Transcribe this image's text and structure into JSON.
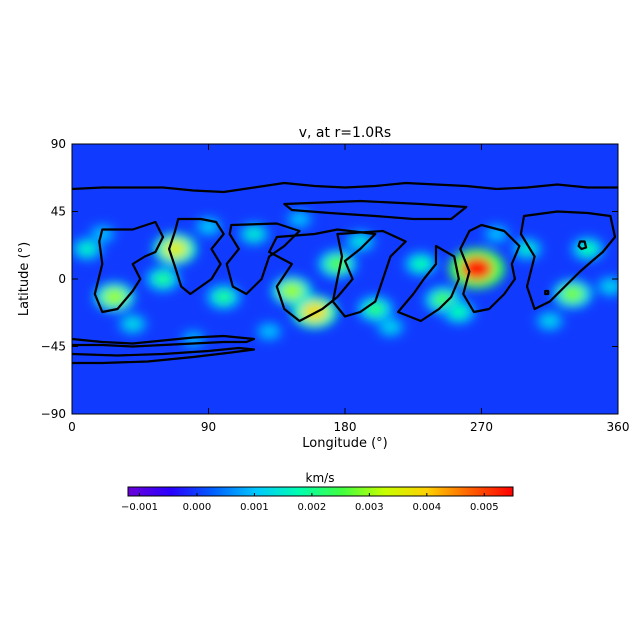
{
  "chart_data": {
    "type": "heatmap",
    "title": "v, at r=1.0Rs",
    "xlabel": "Longitude (°)",
    "ylabel": "Latitude (°)",
    "xlim": [
      0,
      360
    ],
    "ylim": [
      -90,
      90
    ],
    "xticks": [
      0,
      90,
      180,
      270,
      360
    ],
    "yticks": [
      90,
      45,
      0,
      -45,
      -90
    ],
    "xtick_labels": [
      "0",
      "90",
      "180",
      "270",
      "360"
    ],
    "ytick_labels": [
      "90",
      "45",
      "0",
      "−45",
      "−90"
    ],
    "grid": false,
    "background_value": 0.0,
    "colorbar": {
      "label": "km/s",
      "placement": "bottom",
      "range": [
        -0.0012,
        0.0055
      ],
      "ticks": [
        -0.001,
        0.0,
        0.001,
        0.002,
        0.003,
        0.004,
        0.005
      ],
      "tick_labels": [
        "−0.001",
        "0.000",
        "0.001",
        "0.002",
        "0.003",
        "0.004",
        "0.005"
      ],
      "colors": [
        "#6a00d8",
        "#2a00ff",
        "#0060ff",
        "#00c8ff",
        "#00ffb0",
        "#40ff40",
        "#c8ff00",
        "#ffd000",
        "#ff6000",
        "#ff0000"
      ]
    },
    "hotspots": [
      {
        "lon": 267,
        "lat": 7,
        "value": 0.0053
      },
      {
        "lon": 160,
        "lat": -22,
        "value": 0.0038
      },
      {
        "lon": 68,
        "lat": 20,
        "value": 0.0035
      },
      {
        "lon": 145,
        "lat": -8,
        "value": 0.003
      },
      {
        "lon": 28,
        "lat": -12,
        "value": 0.003
      },
      {
        "lon": 330,
        "lat": -10,
        "value": 0.0028
      },
      {
        "lon": 175,
        "lat": 10,
        "value": 0.0026
      },
      {
        "lon": 245,
        "lat": -14,
        "value": 0.0025
      },
      {
        "lon": 200,
        "lat": -20,
        "value": 0.0022
      },
      {
        "lon": 100,
        "lat": -12,
        "value": 0.002
      },
      {
        "lon": 60,
        "lat": 0,
        "value": 0.002
      },
      {
        "lon": 230,
        "lat": 10,
        "value": 0.0018
      },
      {
        "lon": 255,
        "lat": -22,
        "value": 0.0018
      },
      {
        "lon": 340,
        "lat": 20,
        "value": 0.0018
      },
      {
        "lon": 10,
        "lat": 20,
        "value": 0.0016
      },
      {
        "lon": 120,
        "lat": 30,
        "value": 0.0015
      },
      {
        "lon": 300,
        "lat": 20,
        "value": 0.0015
      },
      {
        "lon": 190,
        "lat": 25,
        "value": 0.0014
      },
      {
        "lon": 40,
        "lat": -30,
        "value": 0.0013
      },
      {
        "lon": 210,
        "lat": -32,
        "value": 0.0012
      },
      {
        "lon": 315,
        "lat": -28,
        "value": 0.0012
      },
      {
        "lon": 355,
        "lat": -5,
        "value": 0.0012
      },
      {
        "lon": 90,
        "lat": 35,
        "value": 0.0011
      },
      {
        "lon": 150,
        "lat": 40,
        "value": 0.001
      },
      {
        "lon": 20,
        "lat": 30,
        "value": 0.001
      },
      {
        "lon": 280,
        "lat": 30,
        "value": 0.001
      },
      {
        "lon": 130,
        "lat": -35,
        "value": 0.001
      },
      {
        "lon": 80,
        "lat": -40,
        "value": 0.0009
      }
    ],
    "contours": [
      [
        [
          0,
          60
        ],
        [
          20,
          61
        ],
        [
          40,
          61
        ],
        [
          60,
          61
        ],
        [
          80,
          59
        ],
        [
          100,
          58
        ],
        [
          120,
          61
        ],
        [
          140,
          64
        ],
        [
          160,
          62
        ],
        [
          180,
          61
        ],
        [
          200,
          62
        ],
        [
          220,
          64
        ],
        [
          240,
          63
        ],
        [
          260,
          62
        ],
        [
          280,
          60
        ],
        [
          300,
          61
        ],
        [
          320,
          63
        ],
        [
          340,
          61
        ],
        [
          360,
          61
        ]
      ],
      [
        [
          0,
          -40
        ],
        [
          20,
          -42
        ],
        [
          40,
          -43
        ],
        [
          60,
          -41
        ],
        [
          80,
          -39
        ],
        [
          100,
          -38
        ],
        [
          110,
          -39
        ],
        [
          120,
          -40
        ],
        [
          115,
          -42
        ],
        [
          100,
          -42
        ],
        [
          80,
          -43
        ],
        [
          60,
          -44
        ],
        [
          40,
          -45
        ],
        [
          20,
          -44
        ],
        [
          0,
          -44
        ]
      ],
      [
        [
          0,
          -50
        ],
        [
          30,
          -51
        ],
        [
          60,
          -50
        ],
        [
          90,
          -48
        ],
        [
          110,
          -46
        ],
        [
          120,
          -47
        ],
        [
          105,
          -49
        ],
        [
          80,
          -52
        ],
        [
          50,
          -55
        ],
        [
          20,
          -56
        ],
        [
          0,
          -56
        ]
      ],
      [
        [
          20,
          33
        ],
        [
          40,
          33
        ],
        [
          55,
          38
        ],
        [
          60,
          28
        ],
        [
          55,
          18
        ],
        [
          48,
          15
        ],
        [
          40,
          10
        ],
        [
          45,
          0
        ],
        [
          40,
          -8
        ],
        [
          30,
          -20
        ],
        [
          20,
          -22
        ],
        [
          15,
          -10
        ],
        [
          20,
          10
        ],
        [
          18,
          25
        ]
      ],
      [
        [
          70,
          40
        ],
        [
          85,
          40
        ],
        [
          95,
          38
        ],
        [
          100,
          30
        ],
        [
          92,
          20
        ],
        [
          98,
          10
        ],
        [
          92,
          0
        ],
        [
          85,
          -5
        ],
        [
          78,
          -10
        ],
        [
          72,
          -5
        ],
        [
          68,
          8
        ],
        [
          64,
          20
        ],
        [
          68,
          32
        ]
      ],
      [
        [
          105,
          36
        ],
        [
          135,
          37
        ],
        [
          150,
          32
        ],
        [
          140,
          22
        ],
        [
          130,
          15
        ],
        [
          125,
          0
        ],
        [
          115,
          -10
        ],
        [
          106,
          -5
        ],
        [
          102,
          10
        ],
        [
          110,
          20
        ],
        [
          104,
          30
        ]
      ],
      [
        [
          135,
          28
        ],
        [
          160,
          30
        ],
        [
          175,
          33
        ],
        [
          200,
          30
        ],
        [
          190,
          20
        ],
        [
          180,
          12
        ],
        [
          185,
          0
        ],
        [
          175,
          -12
        ],
        [
          165,
          -20
        ],
        [
          150,
          -28
        ],
        [
          140,
          -20
        ],
        [
          135,
          -5
        ],
        [
          145,
          10
        ],
        [
          130,
          18
        ]
      ],
      [
        [
          140,
          50
        ],
        [
          190,
          52
        ],
        [
          230,
          50
        ],
        [
          260,
          48
        ],
        [
          250,
          40
        ],
        [
          225,
          40
        ],
        [
          200,
          42
        ],
        [
          170,
          44
        ],
        [
          145,
          46
        ]
      ],
      [
        [
          175,
          30
        ],
        [
          205,
          32
        ],
        [
          220,
          25
        ],
        [
          210,
          15
        ],
        [
          205,
          0
        ],
        [
          200,
          -15
        ],
        [
          190,
          -22
        ],
        [
          180,
          -25
        ],
        [
          172,
          -15
        ],
        [
          175,
          0
        ],
        [
          178,
          15
        ]
      ],
      [
        [
          215,
          -22
        ],
        [
          225,
          -10
        ],
        [
          232,
          0
        ],
        [
          240,
          10
        ],
        [
          240,
          22
        ],
        [
          252,
          15
        ],
        [
          255,
          0
        ],
        [
          250,
          -12
        ],
        [
          242,
          -20
        ],
        [
          230,
          -28
        ]
      ],
      [
        [
          262,
          32
        ],
        [
          270,
          36
        ],
        [
          285,
          32
        ],
        [
          295,
          22
        ],
        [
          290,
          10
        ],
        [
          292,
          0
        ],
        [
          285,
          -10
        ],
        [
          275,
          -20
        ],
        [
          265,
          -22
        ],
        [
          258,
          -10
        ],
        [
          262,
          5
        ],
        [
          256,
          20
        ]
      ],
      [
        [
          298,
          42
        ],
        [
          320,
          45
        ],
        [
          340,
          44
        ],
        [
          355,
          42
        ],
        [
          358,
          28
        ],
        [
          350,
          18
        ],
        [
          343,
          12
        ],
        [
          335,
          5
        ],
        [
          325,
          -5
        ],
        [
          315,
          -15
        ],
        [
          305,
          -20
        ],
        [
          300,
          -5
        ],
        [
          305,
          15
        ],
        [
          296,
          30
        ]
      ],
      [
        [
          335,
          25
        ],
        [
          338,
          25
        ],
        [
          339,
          21
        ],
        [
          336,
          20
        ],
        [
          334,
          22
        ]
      ],
      [
        [
          312,
          -8
        ],
        [
          314,
          -8
        ],
        [
          314,
          -10
        ],
        [
          312,
          -10
        ]
      ]
    ]
  }
}
